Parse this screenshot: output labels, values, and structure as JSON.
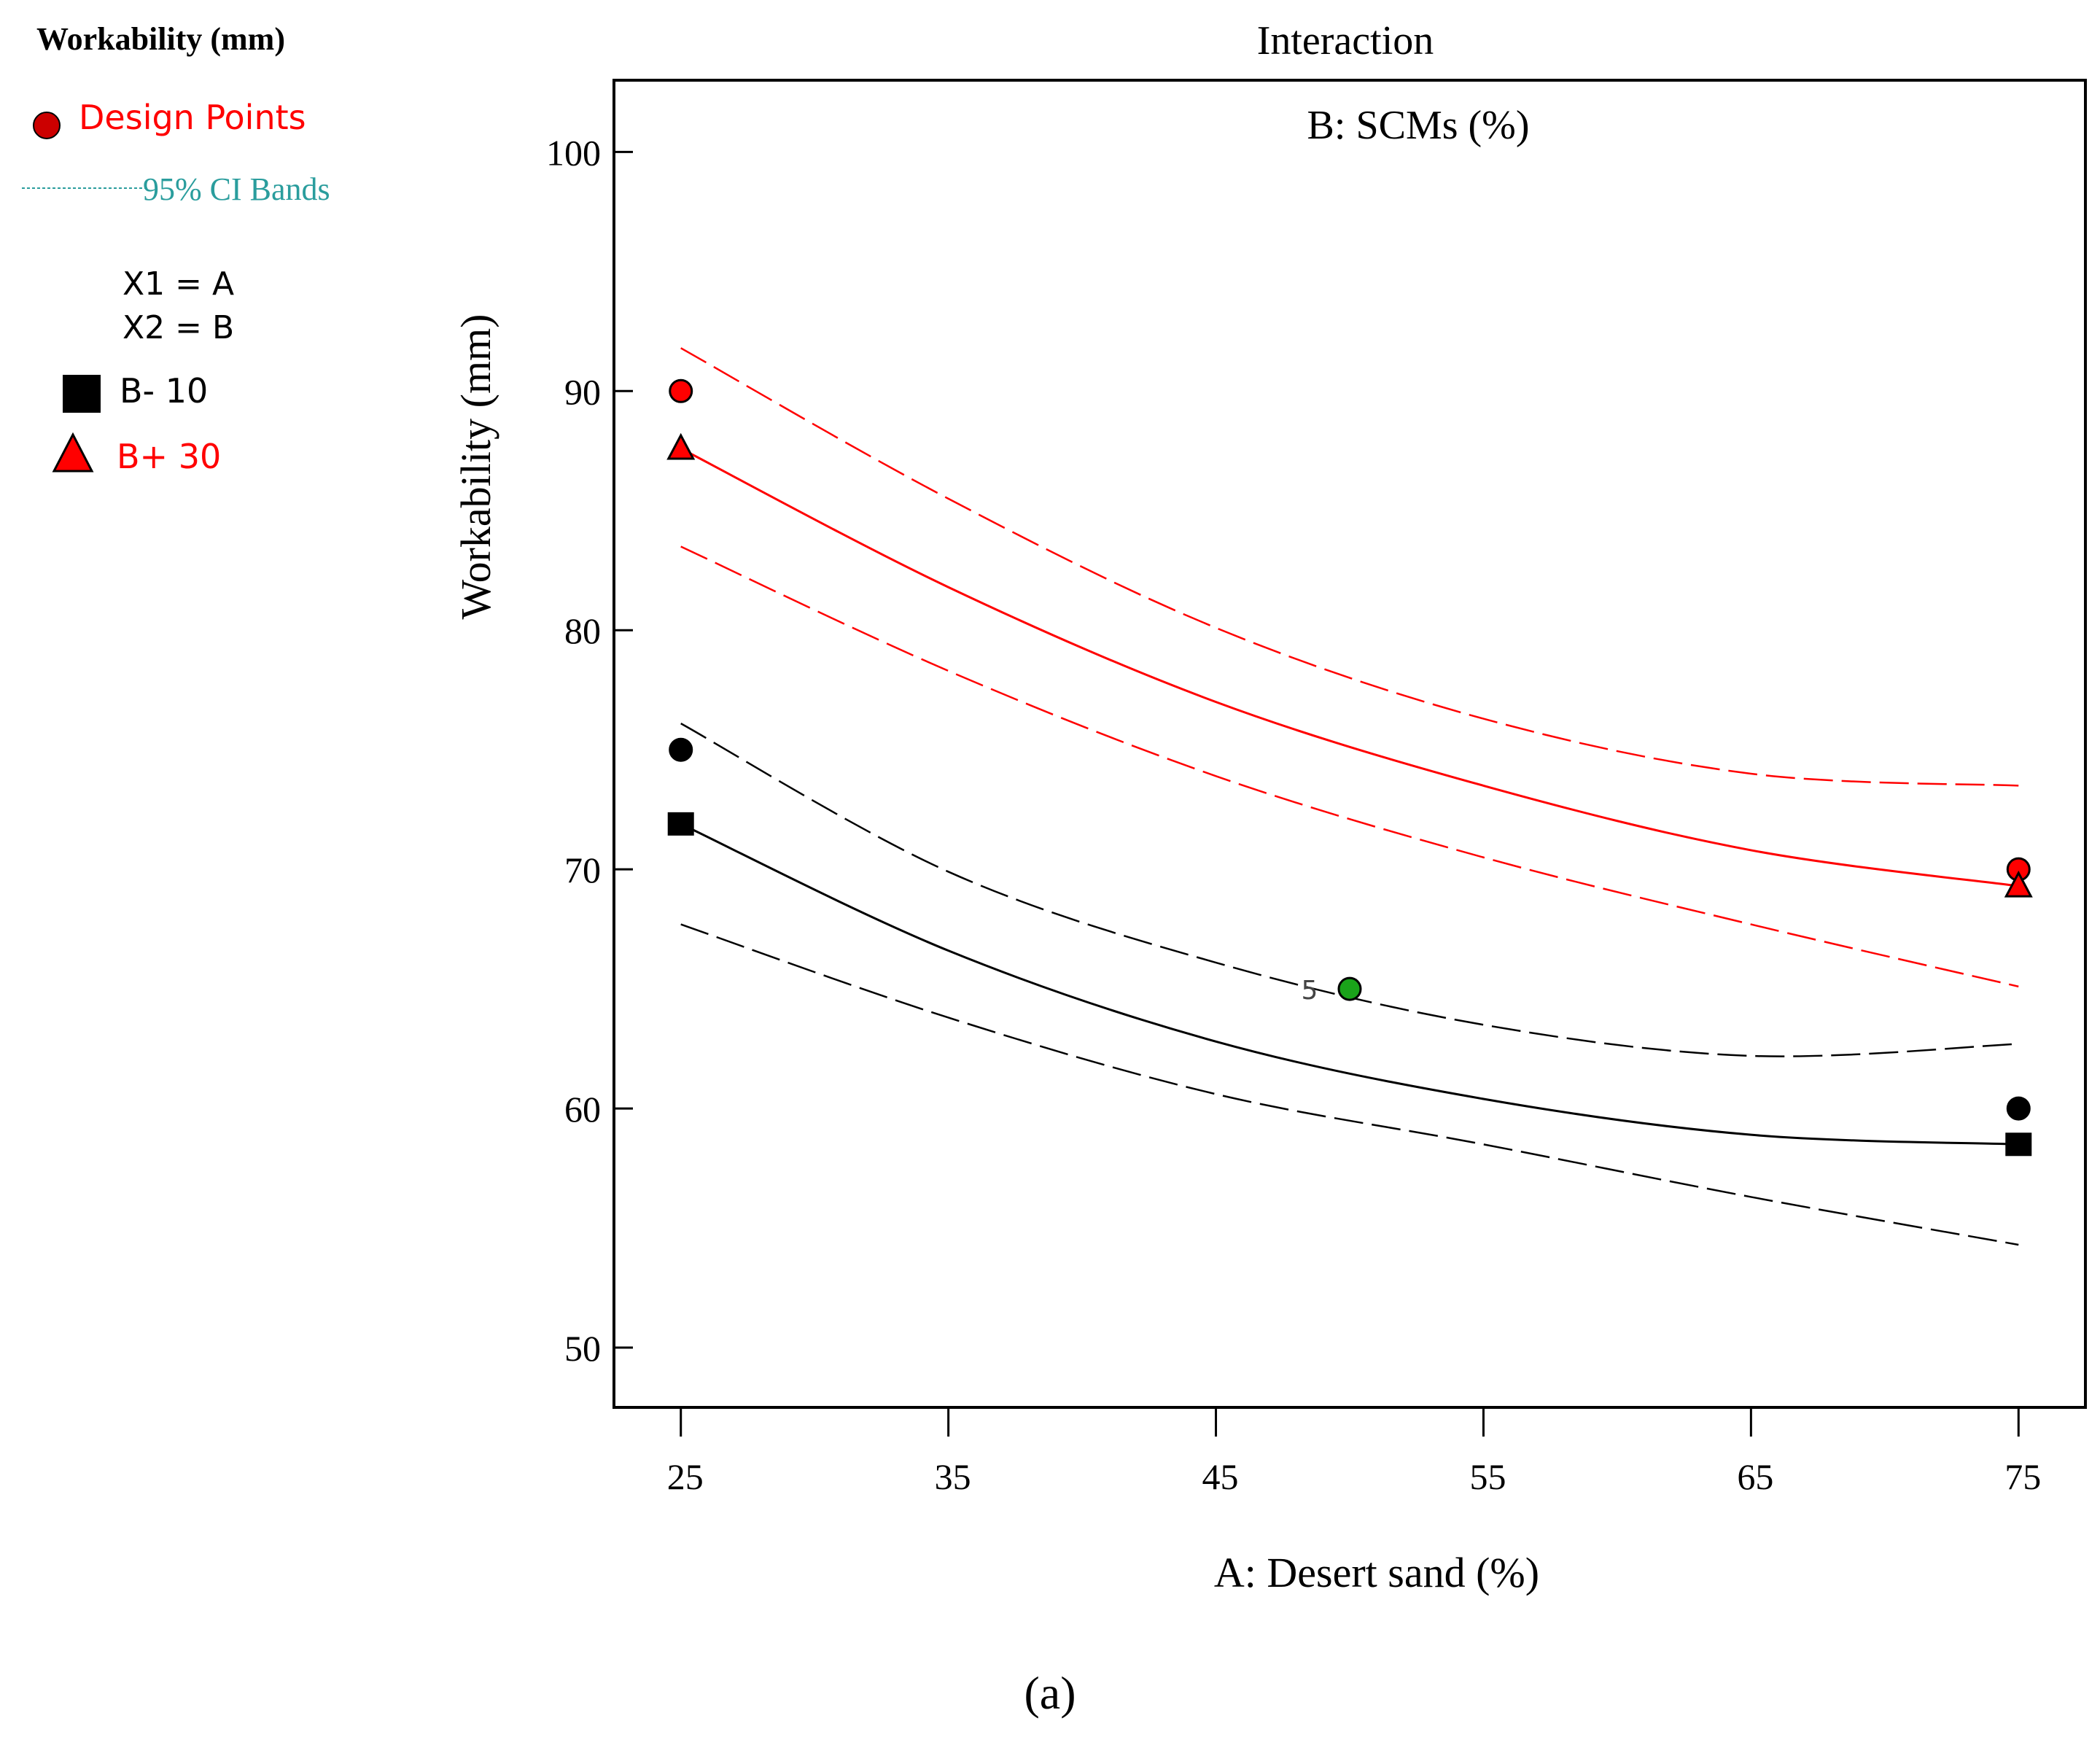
{
  "legend": {
    "heading": "Workability (mm)",
    "design_points": "Design Points",
    "ci_bands": "95% CI Bands",
    "x1": "X1 = A",
    "x2": "X2 = B",
    "b_low": "B- 10",
    "b_high": "B+ 30"
  },
  "caption": "(a)",
  "colors": {
    "red": "#ff0000",
    "dark_red": "#cc0000",
    "teal": "#2a9d9d",
    "black": "#000000",
    "green": "#1aa31a"
  },
  "chart_data": {
    "type": "line",
    "title": "Interaction",
    "subtitle": "B: SCMs (%)",
    "xlabel": "A: Desert sand (%)",
    "ylabel": "Workability (mm)",
    "xlim": [
      22.5,
      77.5
    ],
    "ylim": [
      47.5,
      103
    ],
    "xticks": [
      25,
      35,
      45,
      55,
      65,
      75
    ],
    "yticks": [
      50,
      60,
      70,
      80,
      90,
      100
    ],
    "series": [
      {
        "name": "B+ 30",
        "color": "#ff0000",
        "style": "solid",
        "x": [
          25,
          35,
          45,
          55,
          65,
          75
        ],
        "y": [
          87.6,
          81.8,
          77.0,
          73.5,
          70.8,
          69.3
        ]
      },
      {
        "name": "B+ 30 95% CI upper",
        "color": "#ff0000",
        "style": "dashed",
        "x": [
          25,
          35,
          45,
          55,
          65,
          75
        ],
        "y": [
          91.8,
          85.5,
          80.1,
          76.3,
          74.0,
          73.5
        ]
      },
      {
        "name": "B+ 30 95% CI lower",
        "color": "#ff0000",
        "style": "dashed",
        "x": [
          25,
          35,
          45,
          55,
          65,
          75
        ],
        "y": [
          83.5,
          78.3,
          73.9,
          70.5,
          67.7,
          65.1
        ]
      },
      {
        "name": "B- 10",
        "color": "#000000",
        "style": "solid",
        "x": [
          25,
          35,
          45,
          55,
          65,
          75
        ],
        "y": [
          71.9,
          66.6,
          62.8,
          60.4,
          58.9,
          58.5
        ]
      },
      {
        "name": "B- 10 95% CI upper",
        "color": "#000000",
        "style": "dashed",
        "x": [
          25,
          35,
          45,
          55,
          65,
          75
        ],
        "y": [
          76.1,
          69.9,
          66.1,
          63.5,
          62.2,
          62.7
        ]
      },
      {
        "name": "B- 10 95% CI lower",
        "color": "#000000",
        "style": "dashed",
        "x": [
          25,
          35,
          45,
          55,
          65,
          75
        ],
        "y": [
          67.7,
          63.8,
          60.6,
          58.5,
          56.3,
          54.3
        ]
      }
    ],
    "points": [
      {
        "name": "design point",
        "shape": "circle",
        "color": "#ff0000",
        "x": 25,
        "y": 90
      },
      {
        "name": "design point",
        "shape": "circle",
        "color": "#ff0000",
        "x": 75,
        "y": 70
      },
      {
        "name": "B+ 30",
        "shape": "triangle",
        "color": "#ff0000",
        "x": 25,
        "y": 87.6
      },
      {
        "name": "B+ 30",
        "shape": "triangle",
        "color": "#ff0000",
        "x": 75,
        "y": 69.3
      },
      {
        "name": "design point",
        "shape": "circle",
        "color": "#000000",
        "x": 25,
        "y": 75
      },
      {
        "name": "design point",
        "shape": "circle",
        "color": "#000000",
        "x": 75,
        "y": 60
      },
      {
        "name": "B- 10",
        "shape": "square",
        "color": "#000000",
        "x": 25,
        "y": 71.9
      },
      {
        "name": "B- 10",
        "shape": "square",
        "color": "#000000",
        "x": 75,
        "y": 58.5
      },
      {
        "name": "center point",
        "shape": "circle",
        "color": "#1aa31a",
        "x": 50,
        "y": 65
      }
    ],
    "annotations": [
      {
        "text": "5",
        "x": 48.5,
        "y": 65
      }
    ]
  }
}
